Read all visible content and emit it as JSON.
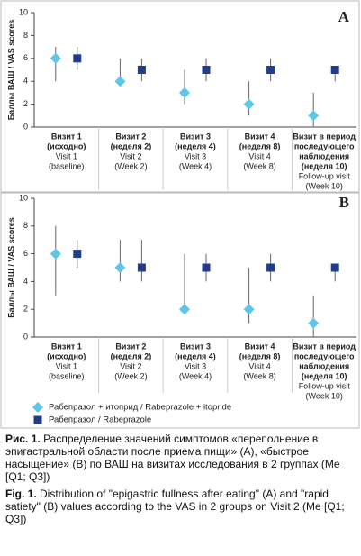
{
  "chart_data": [
    {
      "type": "dot",
      "panel_label": "A",
      "ylabel": "Баллы ВАШ / VAS scores",
      "categories": [
        [
          "Визит 1",
          "(исходно)"
        ],
        [
          "Визит 2",
          "(неделя 2)"
        ],
        [
          "Визит 3",
          "(неделя 4)"
        ],
        [
          "Визит 4",
          "(неделя 8)"
        ],
        [
          "Визит в период",
          "последующего",
          "наблюдения",
          "(неделя 10)"
        ]
      ],
      "categories_en": [
        [
          "Visit 1",
          "(baseline)"
        ],
        [
          "Visit 2",
          "(Week 2)"
        ],
        [
          "Visit 3",
          "(Week 4)"
        ],
        [
          "Visit 4",
          "(Week 8)"
        ],
        [
          "Follow-up visit",
          "(Week 10)"
        ]
      ],
      "ylim": [
        0,
        10
      ],
      "yticks": [
        0,
        2,
        4,
        6,
        8,
        10
      ],
      "series": [
        {
          "marker": "diamond",
          "color": "#5ec6e8",
          "values": [
            6,
            4,
            3,
            2,
            1
          ],
          "low": [
            4,
            4,
            2,
            1,
            0
          ],
          "high": [
            7,
            6,
            5,
            4,
            3
          ]
        },
        {
          "marker": "square",
          "color": "#1f3d8c",
          "values": [
            6,
            5,
            5,
            5,
            5
          ],
          "low": [
            5,
            4,
            4,
            4,
            4
          ],
          "high": [
            7,
            6,
            6,
            6,
            5
          ]
        }
      ]
    },
    {
      "type": "dot",
      "panel_label": "B",
      "ylabel": "Баллы ВАШ / VAS scores",
      "categories": [
        [
          "Визит 1",
          "(исходно)"
        ],
        [
          "Визит 2",
          "(неделя 2)"
        ],
        [
          "Визит 3",
          "(неделя 4)"
        ],
        [
          "Визит 4",
          "(неделя 8)"
        ],
        [
          "Визит в период",
          "последующего",
          "наблюдения",
          "(неделя 10)"
        ]
      ],
      "categories_en": [
        [
          "Visit 1",
          "(baseline)"
        ],
        [
          "Visit 2",
          "(Week 2)"
        ],
        [
          "Visit 3",
          "(Week 4)"
        ],
        [
          "Visit 4",
          "(Week 8)"
        ],
        [
          "Follow-up visit",
          "(Week 10)"
        ]
      ],
      "ylim": [
        0,
        10
      ],
      "yticks": [
        0,
        2,
        4,
        6,
        8,
        10
      ],
      "legend": true,
      "series": [
        {
          "name": "Рабепразол + итоприд / Rabeprazole + itopride",
          "marker": "diamond",
          "color": "#5ec6e8",
          "values": [
            6,
            5,
            2,
            2,
            1
          ],
          "low": [
            3,
            4,
            2,
            1,
            0
          ],
          "high": [
            8,
            7,
            6,
            5,
            3
          ]
        },
        {
          "name": "Рабепразол / Rabeprazole",
          "marker": "square",
          "color": "#1f3d8c",
          "values": [
            6,
            5,
            5,
            5,
            5
          ],
          "low": [
            5,
            4,
            4,
            4,
            4
          ],
          "high": [
            7,
            7,
            6,
            6,
            5
          ]
        }
      ]
    }
  ],
  "caption": {
    "ru_label": "Рис. 1.",
    "ru_text": "Распределение значений симптомов «переполнение в эпигастральной области после приема пищи» (А), «быстрое насыщение» (В) по ВАШ на визитах исследования в 2 группах (Me [Q1; Q3])",
    "en_label": "Fig. 1.",
    "en_text": "Distribution of \"epigastric fullness after eating\" (A) and \"rapid satiety\" (B) values according to the VAS in 2 groups on Visit 2 (Me [Q1; Q3])"
  }
}
